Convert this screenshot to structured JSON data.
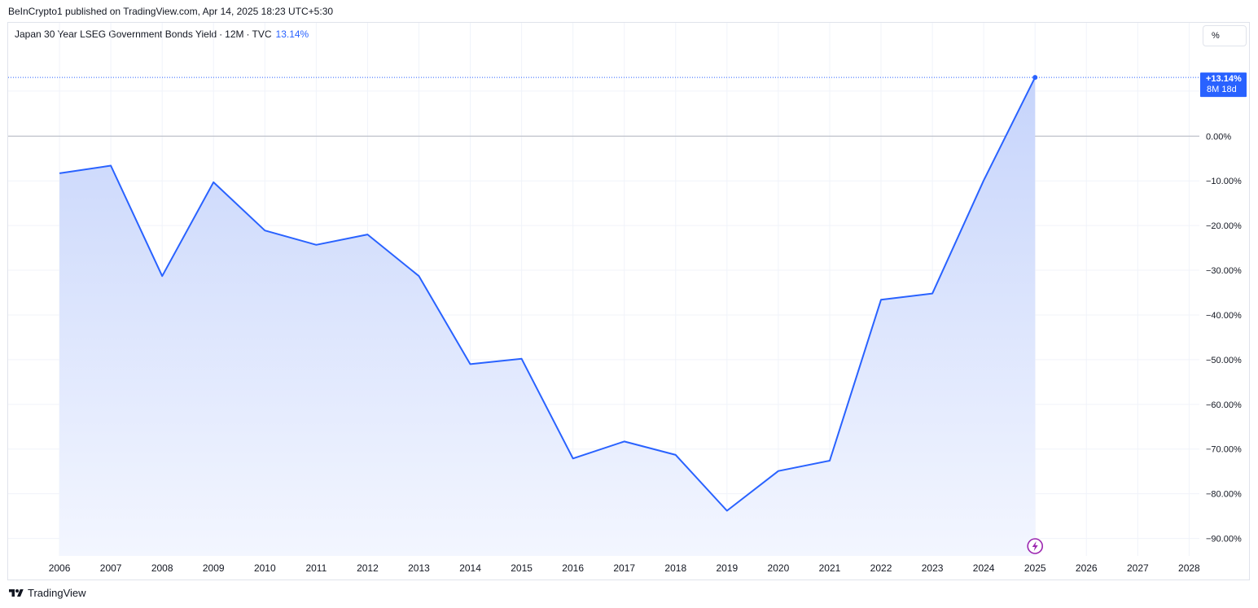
{
  "header": {
    "published_by": "BeInCrypto1 published on TradingView.com, Apr 14, 2025 18:23 UTC+5:30"
  },
  "legend": {
    "title": "Japan 30 Year LSEG Government Bonds Yield",
    "interval": "12M",
    "source": "TVC",
    "last_value": "13.14%",
    "sep": "·"
  },
  "unit_button": {
    "label": "%"
  },
  "footer": {
    "brand": "TradingView",
    "logo": "tradingview-logo-icon"
  },
  "colors": {
    "line": "#2962ff",
    "area_top": "#c6d4fb",
    "area_bottom": "#f3f6ff",
    "grid": "#f0f3fa",
    "zero_line": "#b2b5be",
    "badge": "#2962ff",
    "event_icon": "#9c27b0"
  },
  "price_badge": {
    "value": "+13.14%",
    "countdown": "8M 18d"
  },
  "event_marker": {
    "icon": "lightning-icon",
    "year": "2025"
  },
  "chart_data": {
    "type": "area",
    "title": "Japan 30 Year LSEG Government Bonds Yield",
    "x": [
      "2006",
      "2007",
      "2008",
      "2009",
      "2010",
      "2011",
      "2012",
      "2013",
      "2014",
      "2015",
      "2016",
      "2017",
      "2018",
      "2019",
      "2020",
      "2021",
      "2022",
      "2023",
      "2024",
      "2025"
    ],
    "series": [
      {
        "name": "Japan 30 Year LSEG Government Bonds Yield",
        "values": [
          -8.3,
          -6.6,
          -31.3,
          -10.3,
          -21.1,
          -24.3,
          -22.0,
          -31.3,
          -51.0,
          -49.8,
          -72.1,
          -68.3,
          -71.3,
          -83.8,
          -74.9,
          -72.6,
          -36.6,
          -35.2,
          -9.9,
          13.14
        ]
      }
    ],
    "x_ticks": [
      "2006",
      "2007",
      "2008",
      "2009",
      "2010",
      "2011",
      "2012",
      "2013",
      "2014",
      "2015",
      "2016",
      "2017",
      "2018",
      "2019",
      "2020",
      "2021",
      "2022",
      "2023",
      "2024",
      "2025",
      "2026",
      "2027",
      "2028"
    ],
    "y_ticks": [
      0,
      -10,
      -20,
      -30,
      -40,
      -50,
      -60,
      -70,
      -80,
      -90
    ],
    "y_tick_labels": [
      "0.00%",
      "−10.00%",
      "−20.00%",
      "−30.00%",
      "−40.00%",
      "−50.00%",
      "−60.00%",
      "−70.00%",
      "−80.00%",
      "−90.00%"
    ],
    "ylim": [
      -93.9,
      19.9
    ],
    "xlim": [
      2005,
      2028.2
    ],
    "y_unit": "%",
    "grid": true,
    "legend": "top-left"
  }
}
